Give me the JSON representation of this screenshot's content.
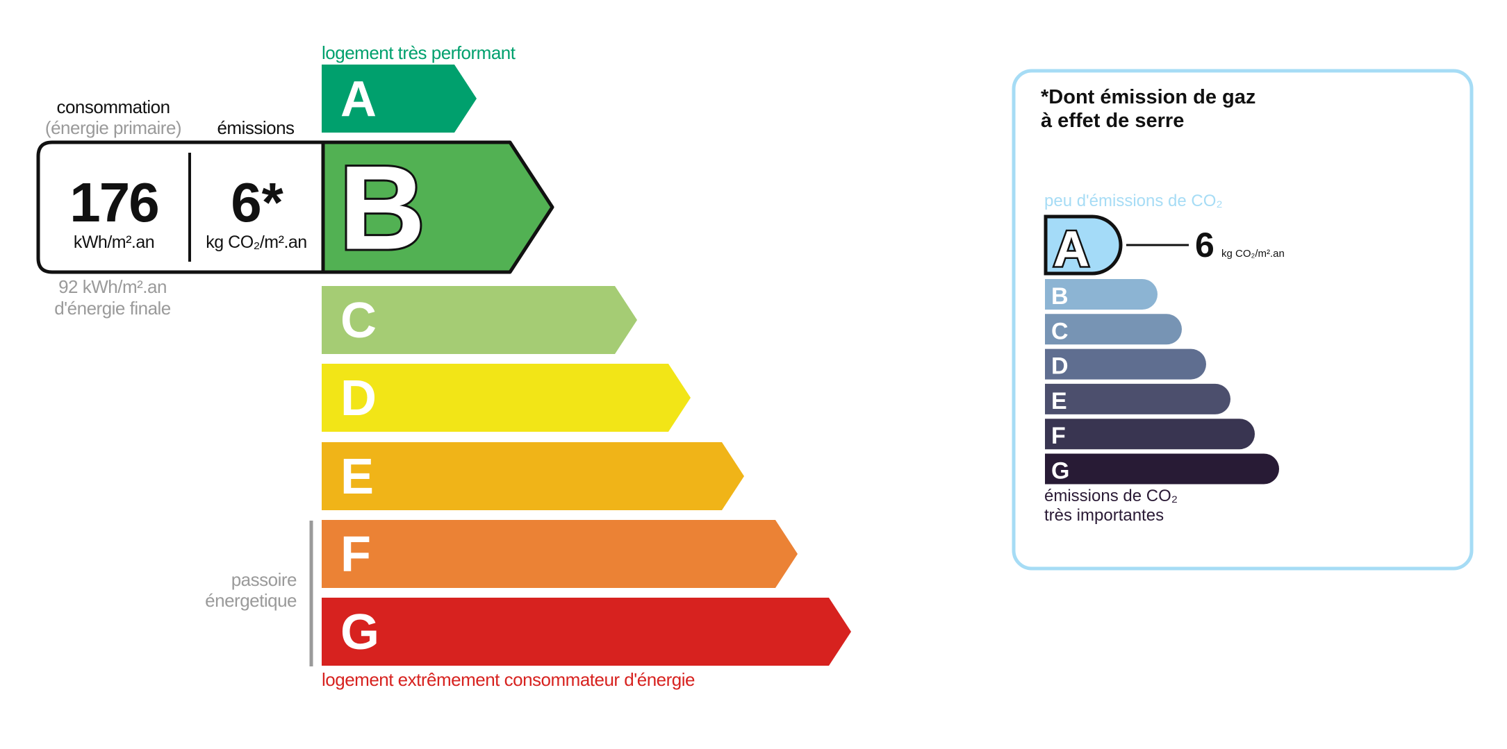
{
  "energy": {
    "top_label": "logement très performant",
    "bottom_label": "logement extrêmement consommateur d'énergie",
    "passoire_line1": "passoire",
    "passoire_line2": "énergetique",
    "current_class": "B",
    "classes": [
      {
        "letter": "A",
        "color": "#00a06d"
      },
      {
        "letter": "B",
        "color": "#52b153"
      },
      {
        "letter": "C",
        "color": "#a5cc74"
      },
      {
        "letter": "D",
        "color": "#f2e517"
      },
      {
        "letter": "E",
        "color": "#f0b418"
      },
      {
        "letter": "F",
        "color": "#eb8235"
      },
      {
        "letter": "G",
        "color": "#d7221f"
      }
    ],
    "consumption_title": "consommation",
    "consumption_subtitle": "(énergie primaire)",
    "emissions_title": "émissions",
    "consumption_value": "176",
    "consumption_unit": "kWh/m².an",
    "emissions_value": "6*",
    "emissions_unit": "kg CO₂/m².an",
    "final_energy_line1": "92 kWh/m².an",
    "final_energy_line2": "d'énergie finale"
  },
  "ghg": {
    "title_line1": "*Dont émission de gaz",
    "title_line2": "à effet de serre",
    "top_label": "peu d'émissions de CO₂",
    "bottom_line1": "émissions de CO₂",
    "bottom_line2": "très importantes",
    "current_class": "A",
    "value": "6",
    "unit": "kg CO₂/m².an",
    "border_color": "#a6dcf5",
    "classes": [
      {
        "letter": "A",
        "color": "#a4dbf8"
      },
      {
        "letter": "B",
        "color": "#8cb4d3"
      },
      {
        "letter": "C",
        "color": "#7794b4"
      },
      {
        "letter": "D",
        "color": "#5f6e90"
      },
      {
        "letter": "E",
        "color": "#4c4f6d"
      },
      {
        "letter": "F",
        "color": "#393551"
      },
      {
        "letter": "G",
        "color": "#281b35"
      }
    ]
  }
}
